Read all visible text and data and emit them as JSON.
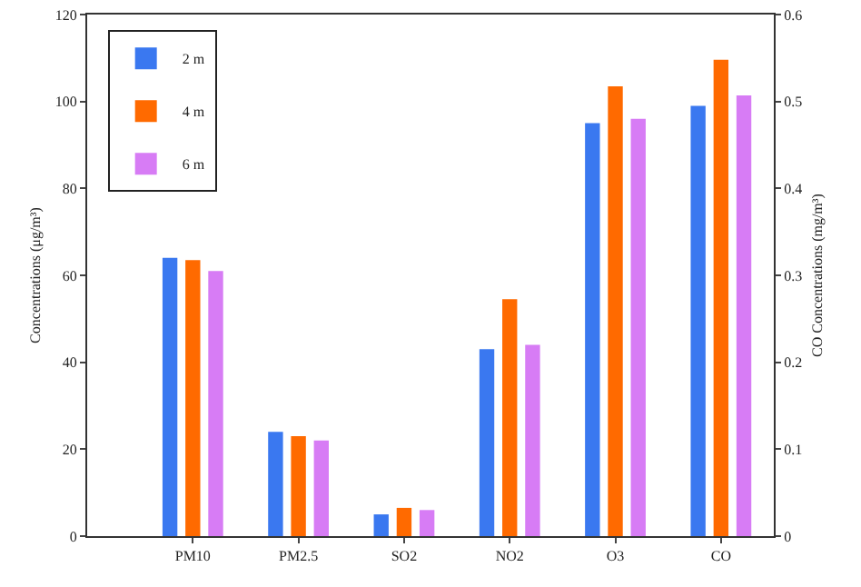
{
  "chart_data": {
    "type": "bar",
    "categories": [
      "PM10",
      "PM2.5",
      "SO2",
      "NO2",
      "O3",
      "CO"
    ],
    "ylabel": "Concentrations (μg/m³)",
    "y2label": "CO Concentrations (mg/m³)",
    "ylim": [
      0,
      120
    ],
    "yticks": [
      0,
      20,
      40,
      60,
      80,
      100,
      120
    ],
    "y2lim": [
      0,
      0.6
    ],
    "y2ticks": [
      0.0,
      0.1,
      0.2,
      0.3,
      0.4,
      0.5,
      0.6
    ],
    "series": [
      {
        "name": "2 m",
        "color": "#3a78f0",
        "values": [
          64,
          24,
          5,
          43,
          95,
          null
        ]
      },
      {
        "name": "4 m",
        "color": "#ff6a00",
        "values": [
          63.5,
          23,
          6.5,
          54.5,
          103.5,
          null
        ]
      },
      {
        "name": "6 m",
        "color": "#d77cf5",
        "values": [
          61,
          22,
          6,
          44,
          96,
          null
        ]
      },
      {
        "color": "#3a78f0",
        "axis": "y2",
        "values": [
          null,
          null,
          null,
          null,
          null,
          0.495
        ]
      },
      {
        "color": "#ff6a00",
        "axis": "y2",
        "values": [
          null,
          null,
          null,
          null,
          null,
          0.548
        ]
      },
      {
        "color": "#d77cf5",
        "axis": "y2",
        "values": [
          null,
          null,
          null,
          null,
          null,
          0.507
        ]
      }
    ],
    "legend": "top left",
    "grid": false
  }
}
